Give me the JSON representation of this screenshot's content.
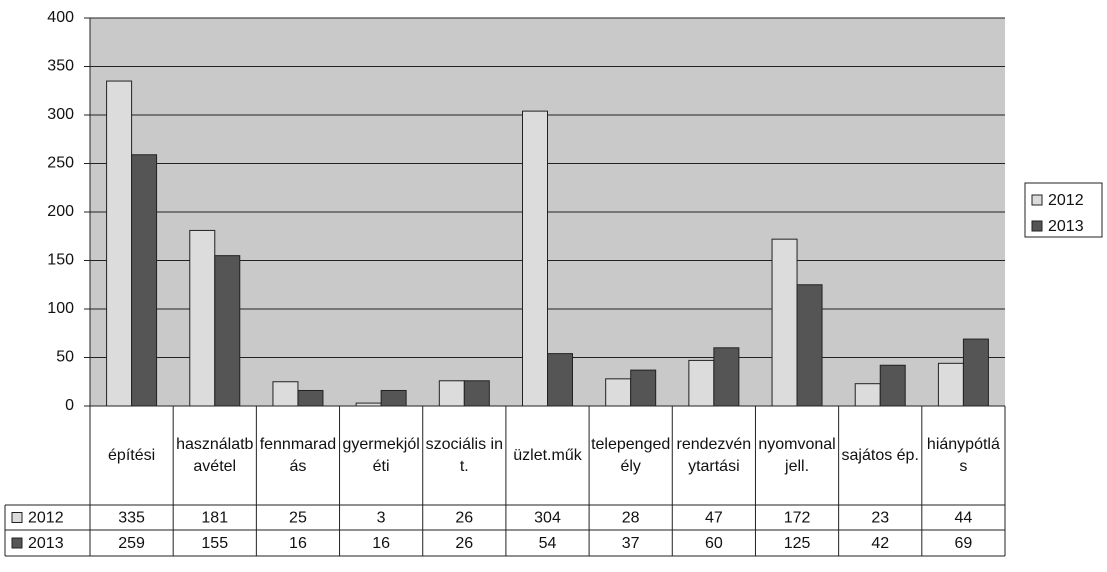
{
  "chart_data": {
    "type": "bar",
    "categories": [
      "építési",
      "használatbavétel",
      "fennmaradás",
      "gyermekjóléti",
      "szociális int.",
      "üzlet.műk",
      "telepengedély",
      "rendezvénytartási",
      "nyomvonal jell.",
      "sajátos ép.",
      "hiánypótlás"
    ],
    "series": [
      {
        "name": "2012",
        "color": "#dcdcdc",
        "values": [
          335,
          181,
          25,
          3,
          26,
          304,
          28,
          47,
          172,
          23,
          44
        ]
      },
      {
        "name": "2013",
        "color": "#555555",
        "values": [
          259,
          155,
          16,
          16,
          26,
          54,
          37,
          60,
          125,
          42,
          69
        ]
      }
    ],
    "ylim": [
      0,
      400
    ],
    "yticks": [
      0,
      50,
      100,
      150,
      200,
      250,
      300,
      350,
      400
    ],
    "grid": true,
    "legend": "right"
  }
}
